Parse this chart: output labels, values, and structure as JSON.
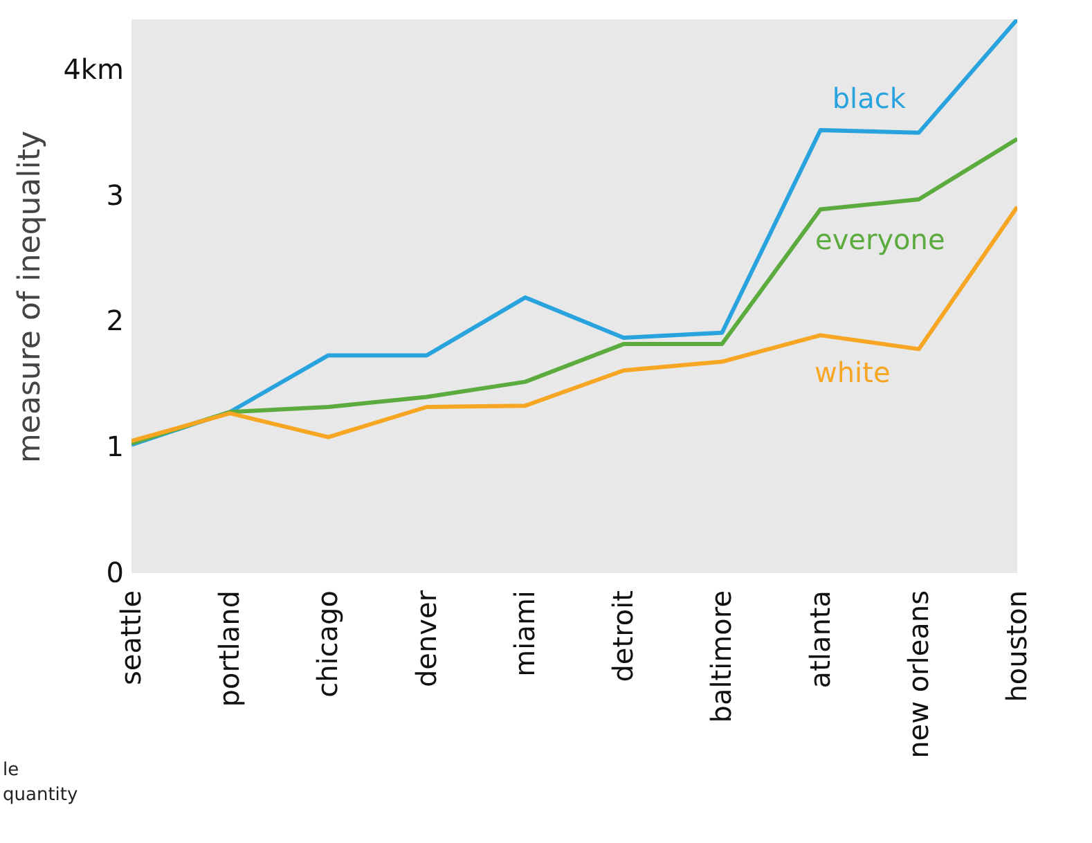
{
  "chart_data": {
    "type": "line",
    "ylabel": "measure of inequality",
    "categories": [
      "seattle",
      "portland",
      "chicago",
      "denver",
      "miami",
      "detroit",
      "baltimore",
      "atlanta",
      "new orleans",
      "houston"
    ],
    "series": [
      {
        "name": "black",
        "color": "#29a3dd",
        "values": [
          1.02,
          1.28,
          1.73,
          1.73,
          2.19,
          1.87,
          1.91,
          3.52,
          3.5,
          4.4
        ]
      },
      {
        "name": "everyone",
        "color": "#5cab3f",
        "values": [
          1.03,
          1.28,
          1.32,
          1.4,
          1.52,
          1.82,
          1.82,
          2.89,
          2.97,
          3.45
        ]
      },
      {
        "name": "white",
        "color": "#f6a623",
        "values": [
          1.05,
          1.27,
          1.08,
          1.32,
          1.33,
          1.61,
          1.68,
          1.89,
          1.78,
          2.91
        ]
      }
    ],
    "ylim": [
      0,
      4.4
    ],
    "yticks": [
      0,
      1,
      2,
      3,
      {
        "value": 4,
        "label": "4km"
      }
    ],
    "annotations": [
      "le",
      "quantity"
    ]
  }
}
